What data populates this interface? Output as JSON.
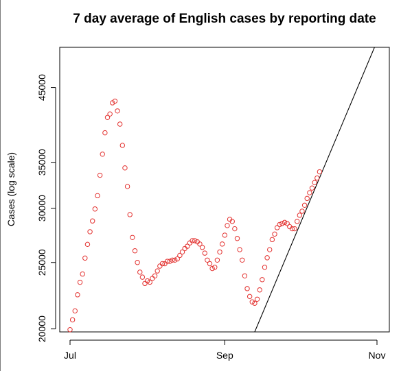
{
  "chart_data": {
    "type": "scatter",
    "title": "7 day average of English cases by reporting date",
    "xlabel": "",
    "ylabel": "Cases (log scale)",
    "y_scale": "log",
    "xlim": [
      "2021-06-28",
      "2021-11-01"
    ],
    "ylim": [
      19800,
      51500
    ],
    "x_ticks": [
      {
        "date": "2021-07-01",
        "label": "Jul"
      },
      {
        "date": "2021-09-01",
        "label": "Sep"
      },
      {
        "date": "2021-11-01",
        "label": "Nov"
      }
    ],
    "y_ticks": [
      20000,
      25000,
      30000,
      35000,
      45000
    ],
    "grid": false,
    "legend": "none",
    "series": [
      {
        "marker": "open-circle",
        "color": "#e3312f",
        "points": [
          [
            "2021-07-01",
            19950
          ],
          [
            "2021-07-02",
            20620
          ],
          [
            "2021-07-03",
            21250
          ],
          [
            "2021-07-04",
            22430
          ],
          [
            "2021-07-05",
            23390
          ],
          [
            "2021-07-06",
            24050
          ],
          [
            "2021-07-07",
            25370
          ],
          [
            "2021-07-08",
            26570
          ],
          [
            "2021-07-09",
            27720
          ],
          [
            "2021-07-10",
            28740
          ],
          [
            "2021-07-11",
            29920
          ],
          [
            "2021-07-12",
            31290
          ],
          [
            "2021-07-13",
            33510
          ],
          [
            "2021-07-14",
            35970
          ],
          [
            "2021-07-15",
            38650
          ],
          [
            "2021-07-16",
            40690
          ],
          [
            "2021-07-17",
            41170
          ],
          [
            "2021-07-18",
            42740
          ],
          [
            "2021-07-19",
            42990
          ],
          [
            "2021-07-20",
            41590
          ],
          [
            "2021-07-21",
            39790
          ],
          [
            "2021-07-22",
            37050
          ],
          [
            "2021-07-23",
            34350
          ],
          [
            "2021-07-24",
            32270
          ],
          [
            "2021-07-25",
            29360
          ],
          [
            "2021-07-26",
            27190
          ],
          [
            "2021-07-27",
            26000
          ],
          [
            "2021-07-28",
            25000
          ],
          [
            "2021-07-29",
            24200
          ],
          [
            "2021-07-30",
            23800
          ],
          [
            "2021-07-31",
            23300
          ],
          [
            "2021-08-01",
            23500
          ],
          [
            "2021-08-02",
            23400
          ],
          [
            "2021-08-03",
            23700
          ],
          [
            "2021-08-04",
            23900
          ],
          [
            "2021-08-05",
            24300
          ],
          [
            "2021-08-06",
            24700
          ],
          [
            "2021-08-07",
            24900
          ],
          [
            "2021-08-08",
            24900
          ],
          [
            "2021-08-09",
            25100
          ],
          [
            "2021-08-10",
            25100
          ],
          [
            "2021-08-11",
            25200
          ],
          [
            "2021-08-12",
            25200
          ],
          [
            "2021-08-13",
            25300
          ],
          [
            "2021-08-14",
            25600
          ],
          [
            "2021-08-15",
            25900
          ],
          [
            "2021-08-16",
            26200
          ],
          [
            "2021-08-17",
            26400
          ],
          [
            "2021-08-18",
            26700
          ],
          [
            "2021-08-19",
            26900
          ],
          [
            "2021-08-20",
            26900
          ],
          [
            "2021-08-21",
            26800
          ],
          [
            "2021-08-22",
            26600
          ],
          [
            "2021-08-23",
            26300
          ],
          [
            "2021-08-24",
            25800
          ],
          [
            "2021-08-25",
            25200
          ],
          [
            "2021-08-26",
            24900
          ],
          [
            "2021-08-27",
            24500
          ],
          [
            "2021-08-28",
            24600
          ],
          [
            "2021-08-29",
            25200
          ],
          [
            "2021-08-30",
            25900
          ],
          [
            "2021-08-31",
            26600
          ],
          [
            "2021-09-01",
            27400
          ],
          [
            "2021-09-02",
            28300
          ],
          [
            "2021-09-03",
            28900
          ],
          [
            "2021-09-04",
            28700
          ],
          [
            "2021-09-05",
            28000
          ],
          [
            "2021-09-06",
            27100
          ],
          [
            "2021-09-07",
            26100
          ],
          [
            "2021-09-08",
            25200
          ],
          [
            "2021-09-09",
            23900
          ],
          [
            "2021-09-10",
            22900
          ],
          [
            "2021-09-11",
            22300
          ],
          [
            "2021-09-12",
            21900
          ],
          [
            "2021-09-13",
            21800
          ],
          [
            "2021-09-14",
            22100
          ],
          [
            "2021-09-15",
            22800
          ],
          [
            "2021-09-16",
            23600
          ],
          [
            "2021-09-17",
            24600
          ],
          [
            "2021-09-18",
            25400
          ],
          [
            "2021-09-19",
            26100
          ],
          [
            "2021-09-20",
            27000
          ],
          [
            "2021-09-21",
            27500
          ],
          [
            "2021-09-22",
            28100
          ],
          [
            "2021-09-23",
            28400
          ],
          [
            "2021-09-24",
            28500
          ],
          [
            "2021-09-25",
            28600
          ],
          [
            "2021-09-26",
            28500
          ],
          [
            "2021-09-27",
            28200
          ],
          [
            "2021-09-28",
            28000
          ],
          [
            "2021-09-29",
            28000
          ],
          [
            "2021-09-30",
            28700
          ],
          [
            "2021-10-01",
            29300
          ],
          [
            "2021-10-02",
            29700
          ],
          [
            "2021-10-03",
            30300
          ],
          [
            "2021-10-04",
            31000
          ],
          [
            "2021-10-05",
            31600
          ],
          [
            "2021-10-06",
            32100
          ],
          [
            "2021-10-07",
            32700
          ],
          [
            "2021-10-08",
            33200
          ],
          [
            "2021-10-09",
            33900
          ]
        ]
      }
    ],
    "trend_line": {
      "color": "#000000",
      "points": [
        [
          "2021-09-13",
          19800
        ],
        [
          "2021-10-31",
          51500
        ]
      ]
    }
  }
}
